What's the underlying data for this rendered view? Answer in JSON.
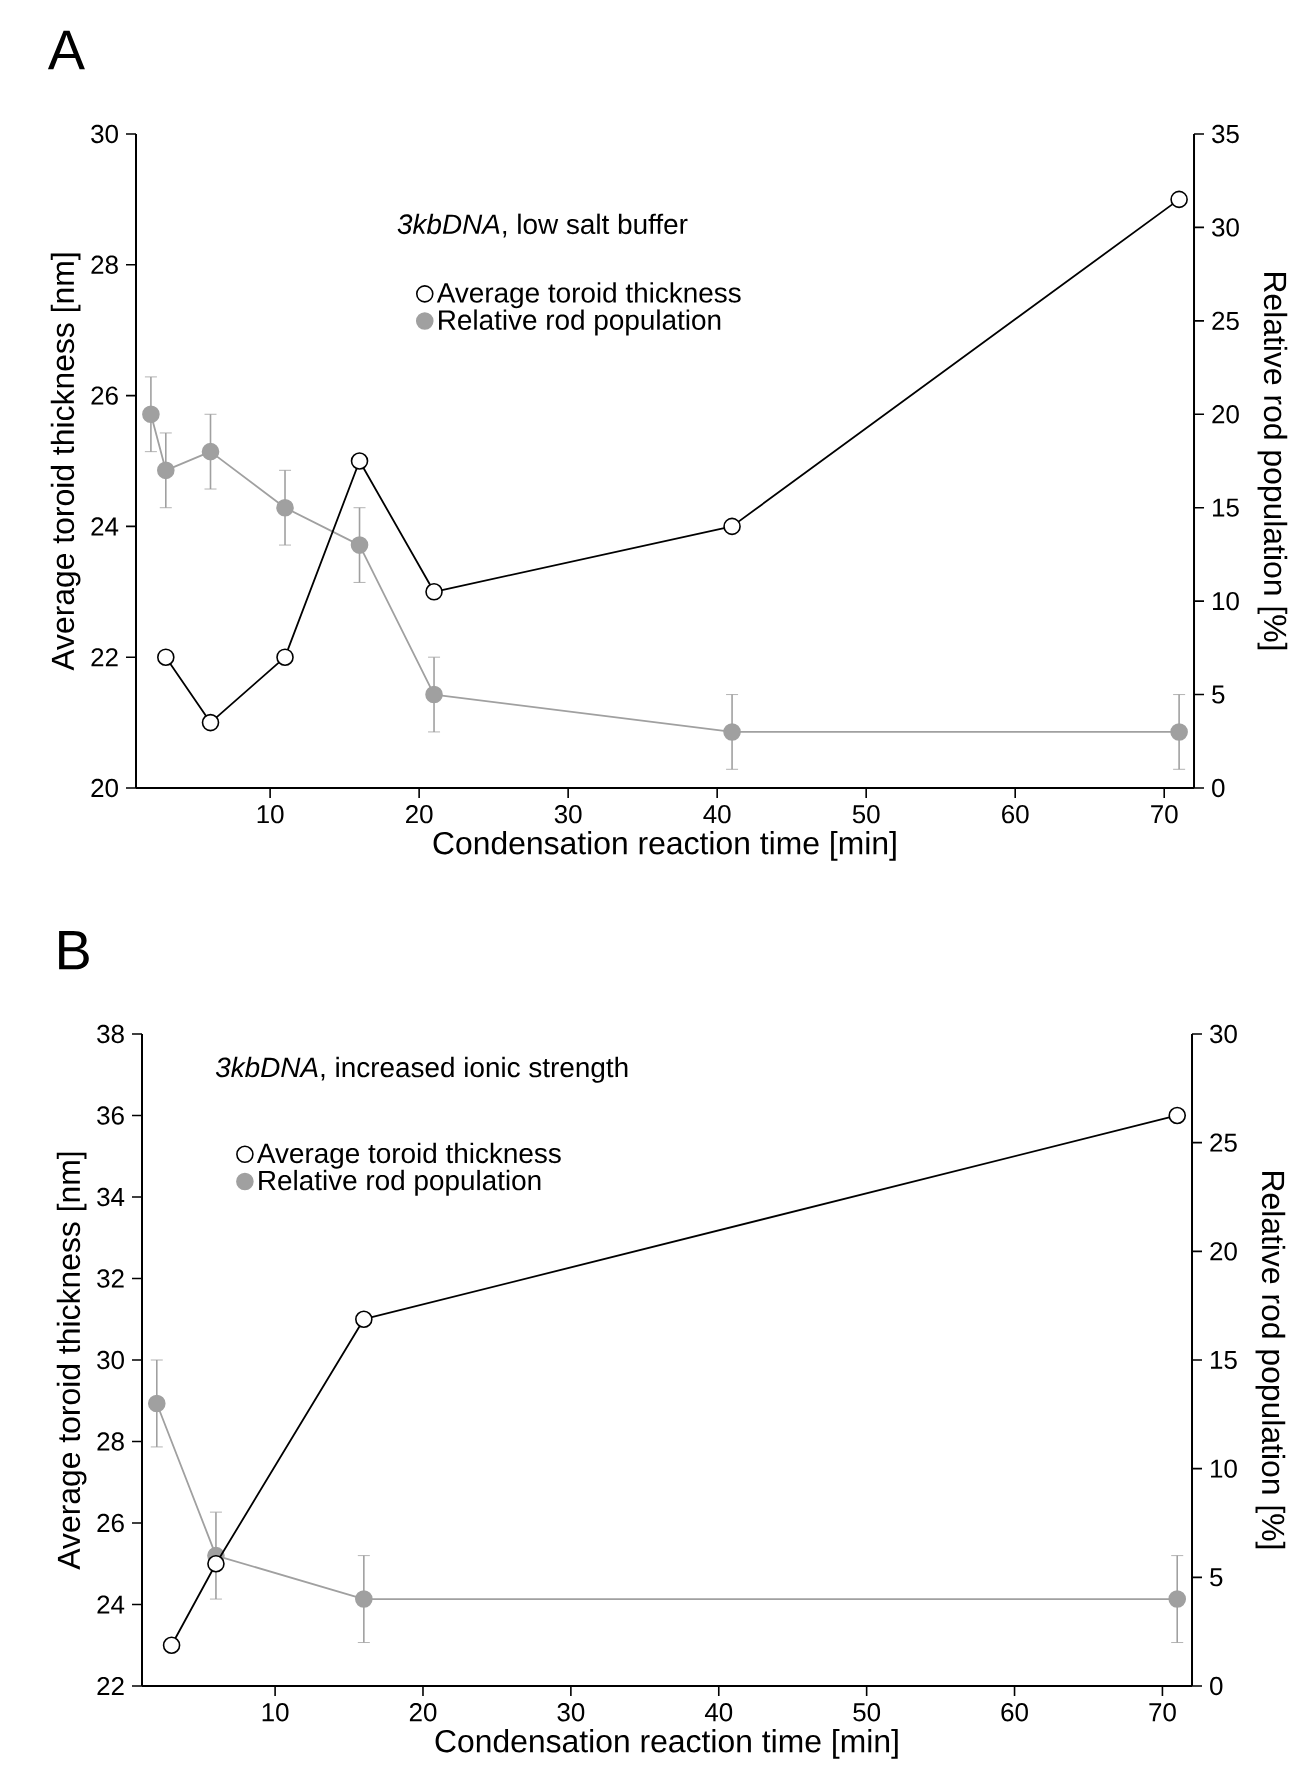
{
  "chart_data": [
    {
      "type": "line",
      "title": "A",
      "xlabel": "Condensation reaction time [min]",
      "ylabel": "Average toroid thickness [nm]",
      "y2label": "Relative rod population [%]",
      "annotations": [
        "*3kbDNA*, low salt buffer"
      ],
      "xlim": [
        1,
        72
      ],
      "xticks": [
        10,
        20,
        30,
        40,
        50,
        60,
        70
      ],
      "ylim": [
        20,
        30
      ],
      "yticks": [
        20,
        22,
        24,
        26,
        28,
        30
      ],
      "y2lim": [
        0,
        35
      ],
      "y2ticks": [
        0,
        5,
        10,
        15,
        20,
        25,
        30,
        35
      ],
      "legend": "top",
      "marker": "circle",
      "grid": false,
      "series": [
        {
          "name": "Average toroid thickness",
          "color": "#000000",
          "x": [
            3,
            6,
            11,
            16,
            21,
            41,
            71
          ],
          "values": [
            22,
            21,
            22,
            25,
            23,
            24,
            29
          ]
        },
        {
          "name": "Relative rod population",
          "color": "#a0a0a0",
          "axis": "y2",
          "x": [
            2,
            3,
            6,
            11,
            16,
            21,
            41,
            71
          ],
          "values": [
            20,
            17,
            18,
            15,
            13,
            5,
            3,
            3
          ],
          "errors": [
            2,
            2,
            2,
            2,
            2,
            2,
            2,
            2
          ]
        }
      ]
    },
    {
      "type": "line",
      "title": "B",
      "xlabel": "Condensation reaction time [min]",
      "ylabel": "Average toroid thickness [nm]",
      "y2label": "Relative rod population [%]",
      "annotations": [
        "*3kbDNA*, increased ionic strength"
      ],
      "xlim": [
        1,
        72
      ],
      "xticks": [
        10,
        20,
        30,
        40,
        50,
        60,
        70
      ],
      "ylim": [
        22,
        38
      ],
      "yticks": [
        22,
        24,
        26,
        28,
        30,
        32,
        34,
        36,
        38
      ],
      "y2lim": [
        0,
        30
      ],
      "y2ticks": [
        0,
        5,
        10,
        15,
        20,
        25,
        30
      ],
      "legend": "top left",
      "marker": "circle",
      "grid": false,
      "series": [
        {
          "name": "Average toroid thickness",
          "color": "#000000",
          "x": [
            3,
            6,
            16,
            71
          ],
          "values": [
            23,
            25,
            31,
            36
          ]
        },
        {
          "name": "Relative rod population",
          "color": "#a0a0a0",
          "axis": "y2",
          "x": [
            2,
            6,
            16,
            71
          ],
          "values": [
            13,
            6,
            4,
            4
          ],
          "errors": [
            2,
            2,
            2,
            2
          ]
        }
      ]
    }
  ]
}
